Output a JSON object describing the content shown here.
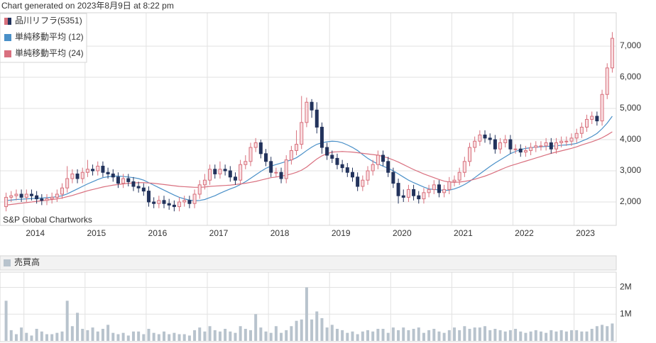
{
  "header": "Chart generated on 2023年8月9日 at 8:22 pm",
  "credit": "S&P Global Chartworks",
  "chart_data": [
    {
      "type": "candlestick",
      "categories": [
        null,
        null,
        null,
        null,
        "2014",
        null,
        null,
        null,
        null,
        null,
        null,
        null,
        null,
        null,
        null,
        null,
        "2015",
        null,
        null,
        null,
        null,
        null,
        null,
        null,
        null,
        null,
        null,
        null,
        "2016",
        null,
        null,
        null,
        null,
        null,
        null,
        null,
        null,
        null,
        null,
        null,
        "2017",
        null,
        null,
        null,
        null,
        null,
        null,
        null,
        null,
        null,
        null,
        null,
        "2018",
        null,
        null,
        null,
        null,
        null,
        null,
        null,
        null,
        null,
        null,
        null,
        "2019",
        null,
        null,
        null,
        null,
        null,
        null,
        null,
        null,
        null,
        null,
        null,
        "2020",
        null,
        null,
        null,
        null,
        null,
        null,
        null,
        null,
        null,
        null,
        null,
        "2021",
        null,
        null,
        null,
        null,
        null,
        null,
        null,
        null,
        null,
        null,
        null,
        "2022",
        null,
        null,
        null,
        null,
        null,
        null,
        null,
        null,
        null,
        null,
        null,
        "2023",
        null,
        null,
        null,
        null,
        null,
        null,
        null
      ],
      "series": [
        {
          "name": "品川リフラ(5351)",
          "up_color": "#d8707c",
          "down_color": "#22335c",
          "open": [
            1850,
            2150,
            2200,
            2250,
            2150,
            2250,
            2200,
            2100,
            2050,
            2100,
            2150,
            2250,
            2450,
            2750,
            2900,
            2750,
            2950,
            3050,
            3000,
            3150,
            2950,
            2900,
            2800,
            2600,
            2750,
            2650,
            2500,
            2450,
            2350,
            2000,
            1950,
            2050,
            1950,
            1900,
            1850,
            2000,
            2050,
            1950,
            2250,
            2550,
            2700,
            3050,
            2900,
            3050,
            3000,
            2800,
            2700,
            3200,
            3300,
            3750,
            3900,
            3550,
            3300,
            2950,
            2950,
            2750,
            3350,
            3650,
            3850,
            4550,
            5200,
            4950,
            4400,
            3750,
            3500,
            3400,
            3200,
            3100,
            2950,
            2800,
            2500,
            2700,
            3000,
            3200,
            3500,
            3300,
            2950,
            2600,
            2200,
            2150,
            2400,
            2200,
            2100,
            2300,
            2400,
            2550,
            2300,
            2400,
            2650,
            2700,
            2950,
            3300,
            3750,
            3950,
            4150,
            4050,
            4000,
            3700,
            3900,
            4000,
            3700,
            3700,
            3600,
            3650,
            3750,
            3800,
            3800,
            3900,
            3700,
            3900,
            3950,
            3950,
            4050,
            4200,
            4400,
            4650,
            4750,
            4600,
            5450,
            6300
          ],
          "high": [
            2300,
            2350,
            2400,
            2400,
            2400,
            2400,
            2350,
            2250,
            2250,
            2300,
            2400,
            2600,
            3150,
            3050,
            3050,
            3100,
            3350,
            3200,
            3300,
            3300,
            3100,
            3050,
            2950,
            2900,
            2900,
            2800,
            2650,
            2600,
            2500,
            2150,
            2200,
            2200,
            2100,
            2050,
            2150,
            2200,
            2200,
            2400,
            2700,
            2900,
            3200,
            3200,
            3300,
            3200,
            3150,
            2950,
            3350,
            3500,
            3900,
            4050,
            4000,
            3700,
            3450,
            3100,
            3100,
            3500,
            3800,
            4300,
            5400,
            5350,
            5300,
            5200,
            4550,
            3900,
            3650,
            3550,
            3350,
            3250,
            3100,
            2950,
            2850,
            3150,
            3350,
            3650,
            3650,
            3450,
            3100,
            2750,
            2400,
            2550,
            2550,
            2350,
            2450,
            2550,
            2700,
            2700,
            2550,
            2800,
            2850,
            3100,
            3450,
            3900,
            4100,
            4300,
            4300,
            4200,
            4150,
            4050,
            4150,
            4150,
            3850,
            3850,
            3800,
            3900,
            3950,
            3950,
            4050,
            4050,
            4050,
            4100,
            4100,
            4200,
            4350,
            4550,
            4800,
            4900,
            4900,
            5600,
            6450,
            7450
          ],
          "low": [
            1700,
            2000,
            2050,
            2000,
            2000,
            2050,
            1950,
            1900,
            1900,
            1950,
            2000,
            2100,
            2300,
            2600,
            2600,
            2600,
            2800,
            2850,
            2850,
            2800,
            2750,
            2650,
            2450,
            2450,
            2500,
            2350,
            2300,
            2200,
            1850,
            1800,
            1800,
            1800,
            1750,
            1700,
            1700,
            1850,
            1800,
            1800,
            2100,
            2400,
            2550,
            2750,
            2750,
            2850,
            2650,
            2550,
            2550,
            3050,
            3150,
            3600,
            3400,
            3150,
            2800,
            2800,
            2600,
            2600,
            3200,
            3500,
            3700,
            4400,
            4700,
            4200,
            3550,
            3350,
            3250,
            3050,
            2950,
            2800,
            2650,
            2350,
            2350,
            2550,
            2850,
            3050,
            3150,
            2800,
            2450,
            1950,
            2000,
            2000,
            2050,
            1950,
            1950,
            2150,
            2250,
            2150,
            2150,
            2250,
            2500,
            2550,
            2800,
            3150,
            3600,
            3800,
            3900,
            3850,
            3550,
            3550,
            3750,
            3550,
            3550,
            3450,
            3450,
            3500,
            3600,
            3650,
            3650,
            3550,
            3550,
            3750,
            3800,
            3800,
            3900,
            4050,
            4250,
            4500,
            4450,
            4450,
            5300,
            6150
          ],
          "close": [
            2150,
            2200,
            2250,
            2150,
            2250,
            2200,
            2100,
            2050,
            2100,
            2150,
            2250,
            2450,
            2750,
            2900,
            2750,
            2950,
            3050,
            3000,
            3150,
            2950,
            2900,
            2800,
            2600,
            2750,
            2650,
            2500,
            2450,
            2350,
            2000,
            1950,
            2050,
            1950,
            1900,
            1850,
            2000,
            2050,
            1950,
            2250,
            2550,
            2700,
            3050,
            2900,
            3050,
            3000,
            2800,
            2700,
            3200,
            3300,
            3750,
            3900,
            3550,
            3300,
            2950,
            2950,
            2750,
            3350,
            3650,
            3850,
            4550,
            5200,
            4950,
            4400,
            3750,
            3500,
            3400,
            3200,
            3100,
            2950,
            2800,
            2500,
            2700,
            3000,
            3200,
            3500,
            3300,
            2950,
            2600,
            2200,
            2150,
            2400,
            2200,
            2100,
            2300,
            2400,
            2550,
            2300,
            2400,
            2650,
            2700,
            2950,
            3300,
            3750,
            3950,
            4150,
            4050,
            4000,
            3700,
            3900,
            4000,
            3700,
            3700,
            3600,
            3650,
            3750,
            3800,
            3800,
            3900,
            3700,
            3900,
            3950,
            3950,
            4050,
            4200,
            4400,
            4650,
            4750,
            4600,
            5450,
            6300,
            7250
          ]
        },
        {
          "name": "単純移動平均 (12)",
          "color": "#4a90c8",
          "values": [
            2050,
            2060,
            2080,
            2090,
            2100,
            2110,
            2120,
            2130,
            2140,
            2150,
            2170,
            2200,
            2260,
            2340,
            2420,
            2500,
            2580,
            2650,
            2720,
            2780,
            2810,
            2830,
            2830,
            2820,
            2800,
            2780,
            2750,
            2700,
            2620,
            2540,
            2460,
            2380,
            2300,
            2220,
            2150,
            2100,
            2060,
            2040,
            2050,
            2080,
            2140,
            2200,
            2280,
            2350,
            2420,
            2480,
            2560,
            2650,
            2760,
            2870,
            2980,
            3080,
            3150,
            3200,
            3250,
            3300,
            3350,
            3420,
            3530,
            3650,
            3760,
            3850,
            3900,
            3930,
            3950,
            3940,
            3900,
            3830,
            3750,
            3650,
            3520,
            3400,
            3300,
            3220,
            3150,
            3080,
            3000,
            2900,
            2800,
            2700,
            2620,
            2550,
            2480,
            2420,
            2400,
            2390,
            2370,
            2380,
            2420,
            2480,
            2560,
            2660,
            2780,
            2900,
            3020,
            3140,
            3250,
            3350,
            3450,
            3550,
            3620,
            3680,
            3720,
            3740,
            3760,
            3770,
            3780,
            3790,
            3800,
            3820,
            3830,
            3850,
            3880,
            3950,
            4020,
            4100,
            4200,
            4350,
            4530,
            4750
          ]
        },
        {
          "name": "単純移動平均 (24)",
          "color": "#d9707f",
          "values": [
            1900,
            1920,
            1940,
            1960,
            1980,
            2000,
            2020,
            2040,
            2060,
            2080,
            2100,
            2130,
            2170,
            2210,
            2260,
            2310,
            2360,
            2400,
            2440,
            2480,
            2510,
            2540,
            2560,
            2580,
            2600,
            2610,
            2620,
            2620,
            2610,
            2600,
            2580,
            2560,
            2540,
            2520,
            2500,
            2490,
            2480,
            2470,
            2470,
            2480,
            2500,
            2510,
            2520,
            2530,
            2540,
            2560,
            2580,
            2600,
            2630,
            2660,
            2700,
            2740,
            2780,
            2800,
            2830,
            2860,
            2900,
            2950,
            3020,
            3120,
            3250,
            3380,
            3480,
            3550,
            3600,
            3610,
            3620,
            3610,
            3600,
            3580,
            3560,
            3540,
            3520,
            3500,
            3460,
            3410,
            3350,
            3280,
            3200,
            3120,
            3040,
            2970,
            2900,
            2840,
            2780,
            2720,
            2670,
            2640,
            2630,
            2640,
            2660,
            2690,
            2730,
            2780,
            2830,
            2890,
            2960,
            3030,
            3100,
            3160,
            3210,
            3260,
            3310,
            3360,
            3410,
            3460,
            3510,
            3560,
            3600,
            3640,
            3680,
            3720,
            3770,
            3830,
            3880,
            3930,
            3990,
            4060,
            4150,
            4250
          ]
        }
      ],
      "ylim": [
        1250,
        8070
      ],
      "yticks": [
        {
          "value": 2000,
          "label": "2,000"
        },
        {
          "value": 3000,
          "label": "3,000"
        },
        {
          "value": 4000,
          "label": "4,000"
        },
        {
          "value": 5000,
          "label": "5,000"
        },
        {
          "value": 6000,
          "label": "6,000"
        },
        {
          "value": 7000,
          "label": "7,000"
        }
      ],
      "grid": true
    },
    {
      "type": "bar",
      "title": "売買高",
      "color": "#b8c3cd",
      "values": [
        1500000,
        400000,
        250000,
        500000,
        300000,
        200000,
        450000,
        350000,
        250000,
        250000,
        300000,
        350000,
        1500000,
        550000,
        1050000,
        450000,
        400000,
        500000,
        350000,
        450000,
        600000,
        300000,
        250000,
        300000,
        200000,
        350000,
        350000,
        250000,
        450000,
        300000,
        250000,
        350000,
        250000,
        300000,
        250000,
        250000,
        200000,
        400000,
        500000,
        350000,
        550000,
        400000,
        350000,
        450000,
        350000,
        300000,
        550000,
        450000,
        400000,
        1000000,
        500000,
        350000,
        300000,
        550000,
        300000,
        400000,
        550000,
        750000,
        800000,
        2000000,
        800000,
        1100000,
        850000,
        500000,
        600000,
        450000,
        400000,
        300000,
        350000,
        250000,
        350000,
        400000,
        350000,
        450000,
        450000,
        300000,
        500000,
        400000,
        500000,
        400000,
        450000,
        500000,
        300000,
        400000,
        450000,
        350000,
        300000,
        400000,
        500000,
        400000,
        550000,
        450000,
        500000,
        500000,
        550000,
        400000,
        450000,
        400000,
        350000,
        400000,
        450000,
        350000,
        300000,
        350000,
        400000,
        350000,
        300000,
        400000,
        350000,
        400000,
        350000,
        400000,
        400000,
        350000,
        350000,
        450000,
        550000,
        600000,
        550000,
        650000
      ],
      "ylim": [
        0,
        2570000
      ],
      "yticks": [
        {
          "value": 1000000,
          "label": "1M"
        },
        {
          "value": 2000000,
          "label": "2M"
        }
      ],
      "grid": true
    }
  ]
}
